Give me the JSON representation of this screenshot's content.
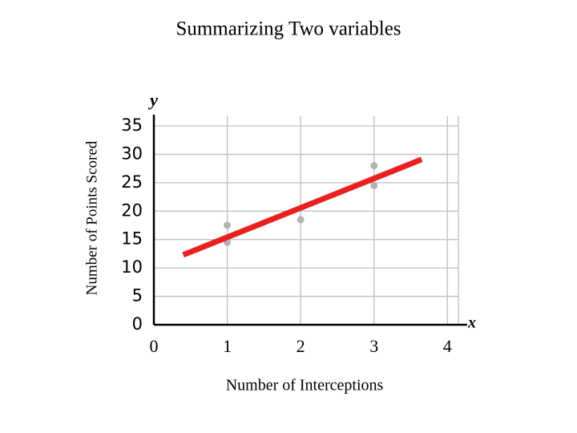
{
  "chart_data": {
    "type": "scatter",
    "title": "Summarizing Two variables",
    "x_label": "Number of Interceptions",
    "y_label": "Number of Points Scored",
    "x_axis_symbol": "x",
    "y_axis_symbol": "y",
    "points": {
      "color": "#b3b3b3",
      "x": [
        1,
        1,
        2,
        3,
        3
      ],
      "values": [
        17.5,
        14.5,
        18.5,
        28,
        24.5
      ]
    },
    "trend_line": {
      "color": "#e8201f",
      "x": [
        0.4,
        3.65
      ],
      "values": [
        12.3,
        29.1
      ]
    },
    "xlim": [
      0,
      4.15
    ],
    "ylim": [
      0,
      35
    ],
    "xticks": [
      0,
      1,
      2,
      3,
      4
    ],
    "yticks": [
      0,
      5,
      10,
      15,
      20,
      25,
      30,
      35
    ],
    "grid": true
  }
}
